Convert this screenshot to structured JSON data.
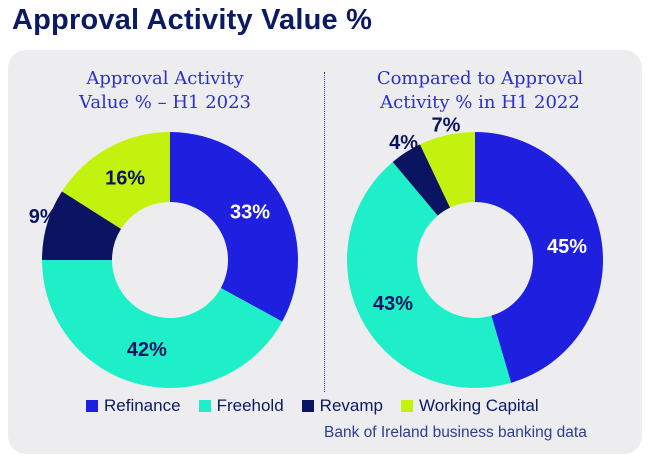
{
  "page": {
    "title": "Approval Activity Value %"
  },
  "chart_data": [
    {
      "type": "pie",
      "title_lines": [
        "Approval Activity",
        "Value % – H1 2023"
      ],
      "categories": [
        "Refinance",
        "Freehold",
        "Revamp",
        "Working Capital"
      ],
      "values": [
        33,
        42,
        9,
        16
      ],
      "labels": [
        "33%",
        "42%",
        "9%",
        "16%"
      ],
      "colors": [
        "#1f1fe0",
        "#1fefc8",
        "#0b1460",
        "#c2f20e"
      ]
    },
    {
      "type": "pie",
      "title_lines": [
        "Compared to Approval",
        "Activity % in H1 2022"
      ],
      "categories": [
        "Refinance",
        "Freehold",
        "Revamp",
        "Working Capital"
      ],
      "values": [
        45,
        43,
        4,
        7
      ],
      "labels": [
        "45%",
        "43%",
        "4%",
        "7%"
      ],
      "colors": [
        "#1f1fe0",
        "#1fefc8",
        "#0b1460",
        "#c2f20e"
      ]
    }
  ],
  "legend": [
    {
      "label": "Refinance",
      "color": "#1f1fe0"
    },
    {
      "label": "Freehold",
      "color": "#1fefc8"
    },
    {
      "label": "Revamp",
      "color": "#0b1460"
    },
    {
      "label": "Working Capital",
      "color": "#c2f20e"
    }
  ],
  "source": "Bank of Ireland business banking data"
}
